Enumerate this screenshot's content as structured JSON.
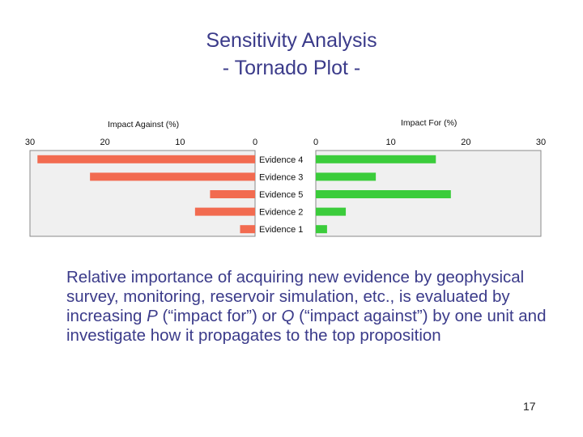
{
  "slide": {
    "title_line1": "Sensitivity Analysis",
    "title_line2": "- Tornado Plot -",
    "body": {
      "part1": "Relative importance of acquiring new evidence by geophysical survey, monitoring, reservoir simulation, etc., is evaluated by increasing ",
      "var_p": "P",
      "part2": " (“impact for”) or ",
      "var_q": "Q",
      "part3": " (“impact against”) by one unit and investigate how it propagates to the top proposition"
    },
    "page_number": "17"
  },
  "chart_data": {
    "type": "bar",
    "subtype": "tornado",
    "categories": [
      "Evidence 4",
      "Evidence 3",
      "Evidence 5",
      "Evidence 2",
      "Evidence 1"
    ],
    "series": [
      {
        "name": "Impact Against (%)",
        "values": [
          29,
          22,
          6,
          8,
          2
        ],
        "color": "#f26b50",
        "xlim": [
          0,
          30
        ],
        "direction": "reversed"
      },
      {
        "name": "Impact For (%)",
        "values": [
          16,
          8,
          18,
          4,
          1.5
        ],
        "color": "#3bcc3b",
        "xlim": [
          0,
          30
        ],
        "direction": "normal"
      }
    ],
    "left_axis_label": "Impact Against (%)",
    "right_axis_label": "Impact For (%)",
    "left_ticks": [
      "30",
      "20",
      "10",
      "0"
    ],
    "right_ticks": [
      "0",
      "10",
      "20",
      "30"
    ],
    "tick_values": [
      0,
      10,
      20,
      30
    ]
  }
}
